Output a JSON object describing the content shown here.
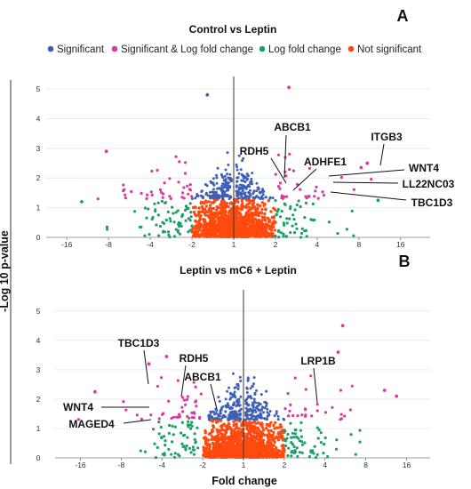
{
  "legend": [
    {
      "label": "Significant",
      "color": "#3f5fb5"
    },
    {
      "label": "Significant & Log fold change",
      "color": "#d63ba2"
    },
    {
      "label": "Log fold change",
      "color": "#1c9e6b"
    },
    {
      "label": "Not significant",
      "color": "#ff4a0f"
    }
  ],
  "ylabel": "-Log 10 p-value",
  "xlabel": "Fold change",
  "chart_data": [
    {
      "type": "scatter",
      "panel_label": "A",
      "title": "Control vs Leptin",
      "x_ticks": [
        "-16",
        "-8",
        "-4",
        "-2",
        "1",
        "2",
        "4",
        "8",
        "16"
      ],
      "y_ticks": [
        "0",
        "1",
        "2",
        "3",
        "4",
        "5"
      ],
      "ylim": [
        0,
        5.3
      ],
      "grid": true,
      "annotations": [
        {
          "label": "ABCB1",
          "x": 2.15,
          "y": 1.5
        },
        {
          "label": "RDH5",
          "x": 2.3,
          "y": 1.45
        },
        {
          "label": "ITGB3",
          "x": 8.3,
          "y": 2.35
        },
        {
          "label": "ADHFE1",
          "x": 2.6,
          "y": 1.6
        },
        {
          "label": "WNT4",
          "x": 3.5,
          "y": 1.95
        },
        {
          "label": "LL22NC03",
          "x": 3.8,
          "y": 1.8
        },
        {
          "label": "TBC1D3",
          "x": 4.2,
          "y": 1.55
        }
      ],
      "highlight_points": [
        {
          "x": -1.55,
          "y": 4.8,
          "group": "Significant"
        },
        {
          "x": 2.5,
          "y": 5.05,
          "group": "Significant & Log fold change"
        },
        {
          "x": -8.3,
          "y": 2.9,
          "group": "Significant & Log fold change"
        },
        {
          "x": 8.3,
          "y": 2.35,
          "group": "Significant & Log fold change"
        },
        {
          "x": 9.2,
          "y": 2.5,
          "group": "Significant & Log fold change"
        },
        {
          "x": -12.5,
          "y": 1.2,
          "group": "Log fold change"
        },
        {
          "x": 11,
          "y": 1.25,
          "group": "Log fold change"
        }
      ]
    },
    {
      "type": "scatter",
      "panel_label": "B",
      "title": "Leptin vs mC6 + Leptin",
      "x_ticks": [
        "-16",
        "-8",
        "-4",
        "-2",
        "1",
        "2",
        "4",
        "8",
        "16"
      ],
      "y_ticks": [
        "0",
        "1",
        "2",
        "3",
        "4",
        "5"
      ],
      "ylim": [
        0,
        5.6
      ],
      "grid": true,
      "annotations": [
        {
          "label": "TBC1D3",
          "x": -4.8,
          "y": 2.4
        },
        {
          "label": "RDH5",
          "x": -3.1,
          "y": 2.0
        },
        {
          "label": "ABCB1",
          "x": -2.3,
          "y": 1.65
        },
        {
          "label": "LRP1B",
          "x": 3.6,
          "y": 1.9
        },
        {
          "label": "WNT4",
          "x": -4.6,
          "y": 1.6
        },
        {
          "label": "MAGED4",
          "x": -4.1,
          "y": 1.3
        }
      ],
      "highlight_points": [
        {
          "x": 5.4,
          "y": 4.5,
          "group": "Significant & Log fold change"
        },
        {
          "x": 5.0,
          "y": 3.6,
          "group": "Significant & Log fold change"
        },
        {
          "x": -3.7,
          "y": 3.45,
          "group": "Significant & Log fold change"
        },
        {
          "x": -5.0,
          "y": 3.2,
          "group": "Significant & Log fold change"
        },
        {
          "x": 11,
          "y": 2.3,
          "group": "Significant & Log fold change"
        },
        {
          "x": 13.5,
          "y": 2.1,
          "group": "Significant & Log fold change"
        },
        {
          "x": -12.5,
          "y": 2.25,
          "group": "Significant & Log fold change"
        }
      ]
    }
  ]
}
